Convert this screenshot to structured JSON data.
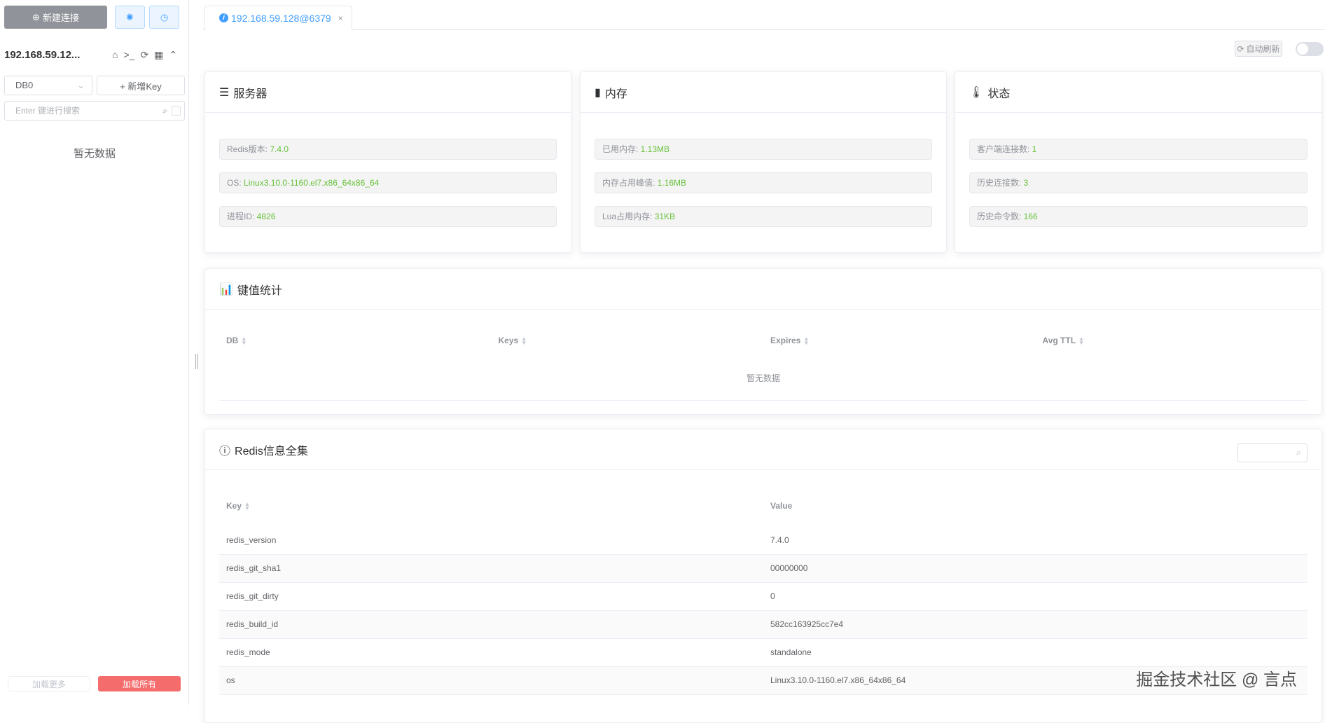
{
  "sidebar": {
    "new_connection": "新建连接",
    "settings_icon": "gear-icon",
    "history_icon": "clock-icon",
    "host": "192.168.59.12...",
    "db_select": "DB0",
    "add_key": "+ 新增Key",
    "search_placeholder": "Enter 键进行搜索",
    "empty": "暂无数据",
    "load_more": "加载更多",
    "load_all": "加载所有"
  },
  "tab": {
    "label": "192.168.59.128@6379",
    "close": "×"
  },
  "toolbar": {
    "auto_refresh": "自动刷新",
    "auto_refresh_on": false
  },
  "server": {
    "title": "服务器",
    "items": [
      {
        "label": "Redis版本: ",
        "value": "7.4.0"
      },
      {
        "label": "OS: ",
        "value": "Linux3.10.0-1160.el7.x86_64x86_64"
      },
      {
        "label": "进程ID: ",
        "value": "4826"
      }
    ]
  },
  "memory": {
    "title": "内存",
    "items": [
      {
        "label": "已用内存: ",
        "value": "1.13MB"
      },
      {
        "label": "内存占用峰值: ",
        "value": "1.16MB"
      },
      {
        "label": "Lua占用内存: ",
        "value": "31KB"
      }
    ]
  },
  "status": {
    "title": "状态",
    "items": [
      {
        "label": "客户端连接数: ",
        "value": "1"
      },
      {
        "label": "历史连接数: ",
        "value": "3"
      },
      {
        "label": "历史命令数: ",
        "value": "166"
      }
    ]
  },
  "keystats": {
    "title": "键值统计",
    "columns": [
      "DB",
      "Keys",
      "Expires",
      "Avg TTL"
    ],
    "empty": "暂无数据"
  },
  "info": {
    "title": "Redis信息全集",
    "columns": [
      "Key",
      "Value"
    ],
    "rows": [
      [
        "redis_version",
        "7.4.0"
      ],
      [
        "redis_git_sha1",
        "00000000"
      ],
      [
        "redis_git_dirty",
        "0"
      ],
      [
        "redis_build_id",
        "582cc163925cc7e4"
      ],
      [
        "redis_mode",
        "standalone"
      ],
      [
        "os",
        "Linux3.10.0-1160.el7.x86_64x86_64"
      ]
    ]
  },
  "watermark": "掘金技术社区 @ 言点",
  "colors": {
    "accent": "#409eff",
    "value_green": "#67c23a",
    "danger": "#f56c6c"
  }
}
